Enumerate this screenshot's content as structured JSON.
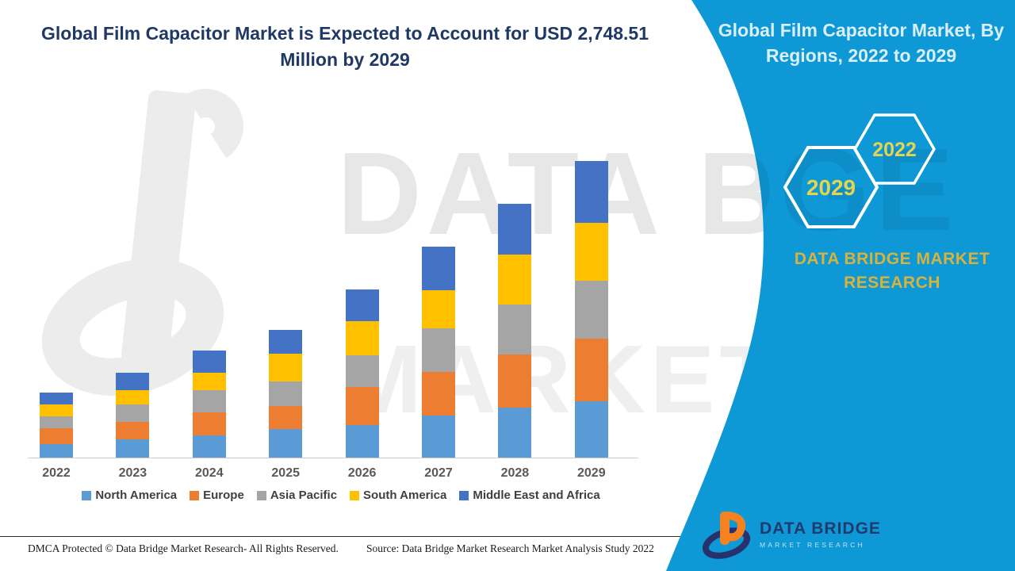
{
  "header": {
    "title_line1": "Global Film Capacitor Market is Expected to Account for USD 2,748.51",
    "title_line2": "Million by 2029"
  },
  "right_panel": {
    "title_line1": "Global Film Capacitor Market, By",
    "title_line2": "Regions, 2022 to 2029",
    "hexagons": [
      {
        "label": "2029"
      },
      {
        "label": "2022"
      }
    ],
    "brand_line1": "DATA BRIDGE MARKET",
    "brand_line2": "RESEARCH",
    "logo_name": "DATA BRIDGE",
    "logo_tagline": "MARKET RESEARCH"
  },
  "watermark": {
    "row1": "DATA BRI",
    "row2": "MARKET RESE",
    "band_row1": "DGE"
  },
  "colors": {
    "band_blue": "#0E99D6",
    "header_navy": "#1F3864",
    "brand_gold": "#D9B23C",
    "hexagon_year": "#E6D44F",
    "right_title_text": "#D9EFF9",
    "axis_label": "#595959",
    "legend_text": "#3F3F3F"
  },
  "chart_data": {
    "type": "bar",
    "stacked": true,
    "title": "Global Film Capacitor Market, By Regions, 2022 to 2029",
    "unit": "USD Million",
    "categories": [
      "2022",
      "2023",
      "2024",
      "2025",
      "2026",
      "2027",
      "2028",
      "2029"
    ],
    "series": [
      {
        "name": "North America",
        "color": "#5B9BD5",
        "values": [
          125,
          169,
          206,
          265,
          301,
          390,
          463,
          522
        ]
      },
      {
        "name": "Europe",
        "color": "#ED7D31",
        "values": [
          147,
          162,
          213,
          213,
          353,
          404,
          492,
          581
        ]
      },
      {
        "name": "Asia Pacific",
        "color": "#A5A5A5",
        "values": [
          110,
          162,
          206,
          228,
          294,
          404,
          463,
          537
        ]
      },
      {
        "name": "South America",
        "color": "#FFC000",
        "values": [
          110,
          132,
          162,
          257,
          316,
          353,
          463,
          537
        ]
      },
      {
        "name": "Middle East and Africa",
        "color": "#4472C4",
        "values": [
          112,
          162,
          206,
          220,
          294,
          404,
          470,
          571.51
        ]
      }
    ],
    "xlabel": "",
    "ylabel": "",
    "y_axis_visible": false,
    "gridlines": false,
    "legend_position": "bottom"
  },
  "footer": {
    "dmca": "DMCA Protected © Data Bridge Market Research- All Rights Reserved.",
    "source": "Source: Data Bridge Market Research Market Analysis Study 2022"
  }
}
